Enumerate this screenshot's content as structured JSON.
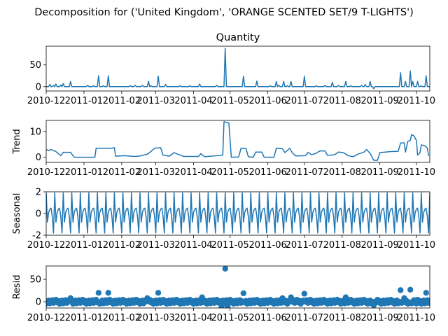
{
  "figure": {
    "suptitle": "Decomposition for ('United Kingdom', 'ORANGE SCENTED SET/9 T-LIGHTS')"
  },
  "chart_data": [
    {
      "type": "line",
      "title": "Quantity",
      "ylabel": "",
      "xlim": [
        "2010-12-01",
        "2011-10-12"
      ],
      "ylim": [
        -10,
        93
      ],
      "yticks": [
        0,
        50
      ],
      "color": "#1f77b4",
      "baseline": 0,
      "spikes": [
        {
          "date": "2010-12-04",
          "y": 5
        },
        {
          "date": "2010-12-07",
          "y": 3
        },
        {
          "date": "2010-12-09",
          "y": 6
        },
        {
          "date": "2010-12-13",
          "y": 4
        },
        {
          "date": "2010-12-15",
          "y": 7
        },
        {
          "date": "2010-12-21",
          "y": 12
        },
        {
          "date": "2011-01-04",
          "y": 3
        },
        {
          "date": "2011-01-09",
          "y": 2
        },
        {
          "date": "2011-01-13",
          "y": 25
        },
        {
          "date": "2011-01-17",
          "y": 2
        },
        {
          "date": "2011-01-21",
          "y": 25
        },
        {
          "date": "2011-02-08",
          "y": 2
        },
        {
          "date": "2011-02-12",
          "y": 3
        },
        {
          "date": "2011-02-18",
          "y": 3
        },
        {
          "date": "2011-02-23",
          "y": 12
        },
        {
          "date": "2011-02-25",
          "y": 2
        },
        {
          "date": "2011-03-03",
          "y": 24
        },
        {
          "date": "2011-03-09",
          "y": 5
        },
        {
          "date": "2011-03-21",
          "y": 2
        },
        {
          "date": "2011-03-29",
          "y": 2
        },
        {
          "date": "2011-04-06",
          "y": 6
        },
        {
          "date": "2011-04-20",
          "y": 3
        },
        {
          "date": "2011-04-27",
          "y": 88
        },
        {
          "date": "2011-05-12",
          "y": 24
        },
        {
          "date": "2011-05-23",
          "y": 13
        },
        {
          "date": "2011-06-03",
          "y": 2
        },
        {
          "date": "2011-06-08",
          "y": 12
        },
        {
          "date": "2011-06-10",
          "y": 3
        },
        {
          "date": "2011-06-14",
          "y": 12
        },
        {
          "date": "2011-06-17",
          "y": 2
        },
        {
          "date": "2011-06-20",
          "y": 12
        },
        {
          "date": "2011-07-01",
          "y": 24
        },
        {
          "date": "2011-07-11",
          "y": 2
        },
        {
          "date": "2011-07-18",
          "y": 3
        },
        {
          "date": "2011-07-24",
          "y": 10
        },
        {
          "date": "2011-07-29",
          "y": 3
        },
        {
          "date": "2011-08-04",
          "y": 12
        },
        {
          "date": "2011-08-08",
          "y": 2
        },
        {
          "date": "2011-08-17",
          "y": 3
        },
        {
          "date": "2011-08-20",
          "y": 5
        },
        {
          "date": "2011-08-24",
          "y": 12
        },
        {
          "date": "2011-08-27",
          "y": -5
        },
        {
          "date": "2011-09-18",
          "y": 32
        },
        {
          "date": "2011-09-22",
          "y": 12
        },
        {
          "date": "2011-09-26",
          "y": 36
        },
        {
          "date": "2011-09-28",
          "y": 12
        },
        {
          "date": "2011-10-02",
          "y": 12
        },
        {
          "date": "2011-10-05",
          "y": 2
        },
        {
          "date": "2011-10-09",
          "y": 25
        }
      ]
    },
    {
      "type": "line",
      "title": "",
      "ylabel": "Trend",
      "xlim": [
        "2010-12-01",
        "2011-10-12"
      ],
      "ylim": [
        -2,
        14.3
      ],
      "yticks": [
        0,
        10
      ],
      "color": "#1f77b4",
      "points": [
        {
          "date": "2010-12-01",
          "y": 3.0
        },
        {
          "date": "2010-12-03",
          "y": 2.6
        },
        {
          "date": "2010-12-05",
          "y": 3.0
        },
        {
          "date": "2010-12-09",
          "y": 2.2
        },
        {
          "date": "2010-12-13",
          "y": 0.6
        },
        {
          "date": "2010-12-15",
          "y": 1.9
        },
        {
          "date": "2010-12-21",
          "y": 1.9
        },
        {
          "date": "2010-12-24",
          "y": 0.0
        },
        {
          "date": "2011-01-10",
          "y": 0.0
        },
        {
          "date": "2011-01-11",
          "y": 3.5
        },
        {
          "date": "2011-01-24",
          "y": 3.5
        },
        {
          "date": "2011-01-26",
          "y": 3.7
        },
        {
          "date": "2011-01-27",
          "y": 0.4
        },
        {
          "date": "2011-02-03",
          "y": 0.6
        },
        {
          "date": "2011-02-11",
          "y": 0.3
        },
        {
          "date": "2011-02-15",
          "y": 0.4
        },
        {
          "date": "2011-02-22",
          "y": 1.2
        },
        {
          "date": "2011-02-25",
          "y": 2.2
        },
        {
          "date": "2011-02-28",
          "y": 3.5
        },
        {
          "date": "2011-03-05",
          "y": 3.7
        },
        {
          "date": "2011-03-07",
          "y": 0.8
        },
        {
          "date": "2011-03-12",
          "y": 0.4
        },
        {
          "date": "2011-03-16",
          "y": 1.8
        },
        {
          "date": "2011-03-20",
          "y": 1.0
        },
        {
          "date": "2011-03-24",
          "y": 0.3
        },
        {
          "date": "2011-04-05",
          "y": 0.3
        },
        {
          "date": "2011-04-07",
          "y": 1.4
        },
        {
          "date": "2011-04-10",
          "y": 0.2
        },
        {
          "date": "2011-04-25",
          "y": 0.8
        },
        {
          "date": "2011-04-26",
          "y": 13.8
        },
        {
          "date": "2011-04-30",
          "y": 13.3
        },
        {
          "date": "2011-05-02",
          "y": 0.0
        },
        {
          "date": "2011-05-08",
          "y": 0.1
        },
        {
          "date": "2011-05-10",
          "y": 3.5
        },
        {
          "date": "2011-05-14",
          "y": 3.5
        },
        {
          "date": "2011-05-16",
          "y": 0.2
        },
        {
          "date": "2011-05-20",
          "y": 0.0
        },
        {
          "date": "2011-05-22",
          "y": 2.0
        },
        {
          "date": "2011-05-27",
          "y": 2.0
        },
        {
          "date": "2011-05-29",
          "y": 0.0
        },
        {
          "date": "2011-06-06",
          "y": 0.0
        },
        {
          "date": "2011-06-08",
          "y": 3.5
        },
        {
          "date": "2011-06-13",
          "y": 3.3
        },
        {
          "date": "2011-06-15",
          "y": 1.8
        },
        {
          "date": "2011-06-19",
          "y": 3.5
        },
        {
          "date": "2011-06-21",
          "y": 1.8
        },
        {
          "date": "2011-06-24",
          "y": 0.5
        },
        {
          "date": "2011-07-02",
          "y": 0.6
        },
        {
          "date": "2011-07-04",
          "y": 1.9
        },
        {
          "date": "2011-07-07",
          "y": 1.0
        },
        {
          "date": "2011-07-10",
          "y": 1.4
        },
        {
          "date": "2011-07-14",
          "y": 2.5
        },
        {
          "date": "2011-07-18",
          "y": 2.4
        },
        {
          "date": "2011-07-20",
          "y": 0.7
        },
        {
          "date": "2011-07-26",
          "y": 1.0
        },
        {
          "date": "2011-07-29",
          "y": 2.0
        },
        {
          "date": "2011-08-02",
          "y": 1.8
        },
        {
          "date": "2011-08-06",
          "y": 0.6
        },
        {
          "date": "2011-08-10",
          "y": 0.2
        },
        {
          "date": "2011-08-14",
          "y": 1.2
        },
        {
          "date": "2011-08-19",
          "y": 2.0
        },
        {
          "date": "2011-08-21",
          "y": 3.0
        },
        {
          "date": "2011-08-24",
          "y": 1.5
        },
        {
          "date": "2011-08-27",
          "y": -1.2
        },
        {
          "date": "2011-08-30",
          "y": -1.2
        },
        {
          "date": "2011-09-01",
          "y": 1.8
        },
        {
          "date": "2011-09-10",
          "y": 2.2
        },
        {
          "date": "2011-09-16",
          "y": 2.3
        },
        {
          "date": "2011-09-18",
          "y": 5.5
        },
        {
          "date": "2011-09-21",
          "y": 5.6
        },
        {
          "date": "2011-09-22",
          "y": 2.0
        },
        {
          "date": "2011-09-24",
          "y": 6.2
        },
        {
          "date": "2011-09-26",
          "y": 6.5
        },
        {
          "date": "2011-09-27",
          "y": 8.8
        },
        {
          "date": "2011-09-29",
          "y": 8.3
        },
        {
          "date": "2011-10-01",
          "y": 6.5
        },
        {
          "date": "2011-10-02",
          "y": 0.8
        },
        {
          "date": "2011-10-04",
          "y": 1.8
        },
        {
          "date": "2011-10-05",
          "y": 4.8
        },
        {
          "date": "2011-10-08",
          "y": 4.5
        },
        {
          "date": "2011-10-10",
          "y": 3.5
        },
        {
          "date": "2011-10-11",
          "y": 0.5
        }
      ]
    },
    {
      "type": "line",
      "title": "",
      "ylabel": "Seasonal",
      "xlim": [
        "2010-12-01",
        "2011-10-12"
      ],
      "ylim": [
        -2,
        2
      ],
      "yticks": [
        -2,
        0,
        2
      ],
      "color": "#1f77b4",
      "period_days": 7,
      "cycle_start": "2010-12-01",
      "weekly_pattern": [
        1.9,
        -0.8,
        0.1,
        0.4,
        0.5,
        -0.3,
        -1.8
      ]
    },
    {
      "type": "scatter",
      "title": "",
      "ylabel": "Resid",
      "xlim": [
        "2010-12-01",
        "2011-10-12"
      ],
      "ylim": [
        -14,
        80
      ],
      "yticks": [
        0,
        50
      ],
      "color": "#1f77b4",
      "outliers": [
        {
          "date": "2011-01-13",
          "y": 20
        },
        {
          "date": "2011-01-21",
          "y": 20
        },
        {
          "date": "2011-03-03",
          "y": 20
        },
        {
          "date": "2011-02-22",
          "y": 8
        },
        {
          "date": "2011-04-08",
          "y": 10
        },
        {
          "date": "2011-04-27",
          "y": 74
        },
        {
          "date": "2011-04-24",
          "y": -12
        },
        {
          "date": "2011-04-29",
          "y": -10
        },
        {
          "date": "2011-05-12",
          "y": 19
        },
        {
          "date": "2011-06-13",
          "y": 8
        },
        {
          "date": "2011-06-20",
          "y": 10
        },
        {
          "date": "2011-07-01",
          "y": 18
        },
        {
          "date": "2011-08-04",
          "y": 10
        },
        {
          "date": "2011-08-27",
          "y": -8
        },
        {
          "date": "2011-09-18",
          "y": 26
        },
        {
          "date": "2011-09-26",
          "y": 27
        },
        {
          "date": "2011-10-09",
          "y": 20
        },
        {
          "date": "2011-09-21",
          "y": 8
        },
        {
          "date": "2011-10-01",
          "y": -4
        },
        {
          "date": "2010-12-21",
          "y": 8
        }
      ]
    }
  ],
  "x_ticks": [
    {
      "date": "2010-12-01",
      "label": "2010-12"
    },
    {
      "date": "2011-01-01",
      "label": "2011-01"
    },
    {
      "date": "2011-02-01",
      "label": "2011-02"
    },
    {
      "date": "2011-03-01",
      "label": "2011-03"
    },
    {
      "date": "2011-04-01",
      "label": "2011-04"
    },
    {
      "date": "2011-05-01",
      "label": "2011-05"
    },
    {
      "date": "2011-06-01",
      "label": "2011-06"
    },
    {
      "date": "2011-07-01",
      "label": "2011-07"
    },
    {
      "date": "2011-08-01",
      "label": "2011-08"
    },
    {
      "date": "2011-09-01",
      "label": "2011-09"
    },
    {
      "date": "2011-10-01",
      "label": "2011-10"
    }
  ]
}
